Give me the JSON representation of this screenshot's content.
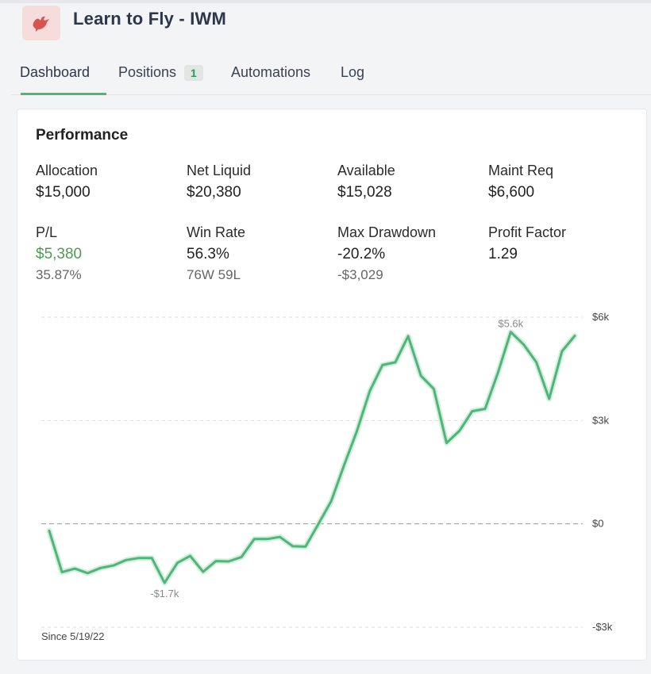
{
  "app": {
    "title": "Learn to Fly - IWM",
    "logo_icon": "bird-icon",
    "accent": "#4fb578",
    "logo_bg": "#f7dcdc",
    "logo_color": "#d9534f"
  },
  "tabs": [
    {
      "label": "Dashboard",
      "active": true
    },
    {
      "label": "Positions",
      "badge": "1"
    },
    {
      "label": "Automations"
    },
    {
      "label": "Log"
    }
  ],
  "performance": {
    "title": "Performance",
    "stats": [
      {
        "label": "Allocation",
        "value": "$15,000"
      },
      {
        "label": "Net Liquid",
        "value": "$20,380"
      },
      {
        "label": "Available",
        "value": "$15,028"
      },
      {
        "label": "Maint Req",
        "value": "$6,600"
      },
      {
        "label": "P/L",
        "value": "$5,380",
        "sub": "35.87%"
      },
      {
        "label": "Win Rate",
        "value": "56.3%",
        "sub": "76W 59L"
      },
      {
        "label": "Max Drawdown",
        "value": "-20.2%",
        "sub": "-$3,029"
      },
      {
        "label": "Profit Factor",
        "value": "1.29"
      }
    ],
    "since": "Since 5/19/22"
  },
  "chart_data": {
    "type": "line",
    "color": "#4fb578",
    "grid": true,
    "ylim": [
      -3000,
      6000
    ],
    "yticks": [
      {
        "value": 6000,
        "label": "$6k"
      },
      {
        "value": 3000,
        "label": "$3k"
      },
      {
        "value": 0,
        "label": "$0"
      },
      {
        "value": -3000,
        "label": "-$3k"
      }
    ],
    "values": [
      -200,
      -1400,
      -1300,
      -1430,
      -1280,
      -1210,
      -1050,
      -990,
      -990,
      -1710,
      -1130,
      -930,
      -1390,
      -1080,
      -1090,
      -960,
      -440,
      -440,
      -380,
      -650,
      -660,
      0,
      660,
      1700,
      2690,
      3850,
      4610,
      4690,
      5450,
      4300,
      3920,
      2350,
      2700,
      3270,
      3340,
      4380,
      5570,
      5210,
      4690,
      3630,
      5010,
      5460
    ],
    "annotations": [
      {
        "label": "$5.6k",
        "index": 36
      },
      {
        "label": "-$1.7k",
        "index": 9
      }
    ]
  }
}
